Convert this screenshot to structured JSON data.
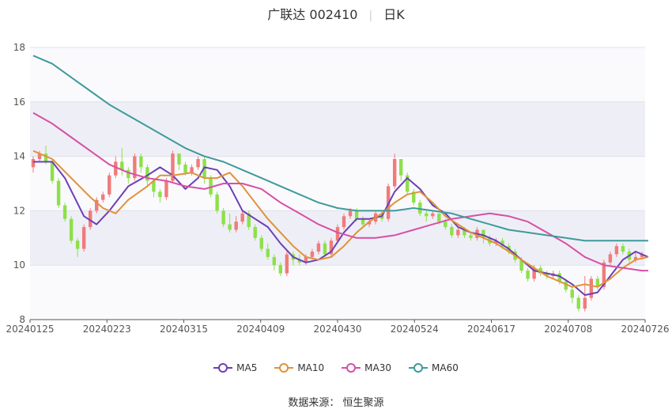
{
  "header": {
    "stock": "广联达 002410",
    "period": "日K"
  },
  "legend": [
    {
      "label": "MA5",
      "color": "#6c3fb5"
    },
    {
      "label": "MA10",
      "color": "#e0923a"
    },
    {
      "label": "MA30",
      "color": "#d84fa6"
    },
    {
      "label": "MA60",
      "color": "#3f9a9a"
    }
  ],
  "source": "数据来源：  恒生聚源",
  "chart_data": {
    "type": "candlestick",
    "ylim": [
      8,
      18
    ],
    "yticks": [
      8,
      10,
      12,
      14,
      16,
      18
    ],
    "xticks": [
      "20240125",
      "20240223",
      "20240315",
      "20240409",
      "20240430",
      "20240524",
      "20240617",
      "20240708",
      "20240726"
    ],
    "candles": [
      [
        13.6,
        13.9,
        14.0,
        13.4
      ],
      [
        13.9,
        14.1,
        14.2,
        13.8
      ],
      [
        14.1,
        13.8,
        14.4,
        13.7
      ],
      [
        13.8,
        13.1,
        13.9,
        13.0
      ],
      [
        13.1,
        12.2,
        13.2,
        12.1
      ],
      [
        12.2,
        11.7,
        12.3,
        11.6
      ],
      [
        11.7,
        10.9,
        11.8,
        10.8
      ],
      [
        10.9,
        10.6,
        11.0,
        10.3
      ],
      [
        10.6,
        11.4,
        11.5,
        10.5
      ],
      [
        11.4,
        12.0,
        12.1,
        11.3
      ],
      [
        12.0,
        12.4,
        12.5,
        11.9
      ],
      [
        12.4,
        12.6,
        12.7,
        12.3
      ],
      [
        12.6,
        13.3,
        13.4,
        12.5
      ],
      [
        13.3,
        13.8,
        14.0,
        13.2
      ],
      [
        13.8,
        13.5,
        14.3,
        13.3
      ],
      [
        13.5,
        13.2,
        13.6,
        13.0
      ],
      [
        13.2,
        14.0,
        14.1,
        13.1
      ],
      [
        14.0,
        13.6,
        14.1,
        13.4
      ],
      [
        13.6,
        13.1,
        13.7,
        12.9
      ],
      [
        13.1,
        12.7,
        13.2,
        12.5
      ],
      [
        12.7,
        12.5,
        12.8,
        12.3
      ],
      [
        12.5,
        13.1,
        13.2,
        12.4
      ],
      [
        13.1,
        14.1,
        14.2,
        13.0
      ],
      [
        14.1,
        13.7,
        14.0,
        13.5
      ],
      [
        13.7,
        13.4,
        13.8,
        13.3
      ],
      [
        13.4,
        13.6,
        13.7,
        13.3
      ],
      [
        13.6,
        13.9,
        14.0,
        13.5
      ],
      [
        13.9,
        13.2,
        14.0,
        13.0
      ],
      [
        13.2,
        12.6,
        13.3,
        12.5
      ],
      [
        12.6,
        12.0,
        12.7,
        11.9
      ],
      [
        12.0,
        11.5,
        12.1,
        11.4
      ],
      [
        11.5,
        11.3,
        11.9,
        11.2
      ],
      [
        11.3,
        11.6,
        11.8,
        11.2
      ],
      [
        11.6,
        11.9,
        12.0,
        11.5
      ],
      [
        11.9,
        11.4,
        12.0,
        11.3
      ],
      [
        11.4,
        11.0,
        11.5,
        10.9
      ],
      [
        11.0,
        10.6,
        11.1,
        10.5
      ],
      [
        10.6,
        10.3,
        10.8,
        10.2
      ],
      [
        10.3,
        10.0,
        10.4,
        9.8
      ],
      [
        10.0,
        9.7,
        10.1,
        9.6
      ],
      [
        9.7,
        10.4,
        10.5,
        9.6
      ],
      [
        10.4,
        10.2,
        10.5,
        10.0
      ],
      [
        10.2,
        10.1,
        10.4,
        10.0
      ],
      [
        10.1,
        10.3,
        10.4,
        10.0
      ],
      [
        10.3,
        10.5,
        10.6,
        10.2
      ],
      [
        10.5,
        10.8,
        10.9,
        10.4
      ],
      [
        10.8,
        10.4,
        10.9,
        10.3
      ],
      [
        10.4,
        10.9,
        11.0,
        10.3
      ],
      [
        10.9,
        11.4,
        11.5,
        10.8
      ],
      [
        11.4,
        11.8,
        11.9,
        11.3
      ],
      [
        11.8,
        12.0,
        12.1,
        11.7
      ],
      [
        12.0,
        11.7,
        12.1,
        11.6
      ],
      [
        11.7,
        11.5,
        11.8,
        11.4
      ],
      [
        11.5,
        11.6,
        11.7,
        11.4
      ],
      [
        11.6,
        11.9,
        12.0,
        11.5
      ],
      [
        11.9,
        11.7,
        12.0,
        11.6
      ],
      [
        11.7,
        12.9,
        13.0,
        11.6
      ],
      [
        12.9,
        13.9,
        14.1,
        12.8
      ],
      [
        13.9,
        13.3,
        13.9,
        13.1
      ],
      [
        13.3,
        12.7,
        13.4,
        12.6
      ],
      [
        12.7,
        12.3,
        12.8,
        12.2
      ],
      [
        12.3,
        11.9,
        12.4,
        11.8
      ],
      [
        11.9,
        11.8,
        12.0,
        11.6
      ],
      [
        11.8,
        11.9,
        12.0,
        11.7
      ],
      [
        11.9,
        11.6,
        11.9,
        11.5
      ],
      [
        11.6,
        11.4,
        11.7,
        11.3
      ],
      [
        11.4,
        11.1,
        11.5,
        11.0
      ],
      [
        11.1,
        11.3,
        11.4,
        11.0
      ],
      [
        11.3,
        11.1,
        11.4,
        11.0
      ],
      [
        11.1,
        11.0,
        11.2,
        10.9
      ],
      [
        11.0,
        11.3,
        11.4,
        10.9
      ],
      [
        11.3,
        11.0,
        11.3,
        10.8
      ],
      [
        11.0,
        10.8,
        11.1,
        10.7
      ],
      [
        10.8,
        10.9,
        11.0,
        10.7
      ],
      [
        10.9,
        10.7,
        11.0,
        10.6
      ],
      [
        10.7,
        10.5,
        10.8,
        10.4
      ],
      [
        10.5,
        10.2,
        10.6,
        10.1
      ],
      [
        10.2,
        9.8,
        10.3,
        9.7
      ],
      [
        9.8,
        9.5,
        9.9,
        9.4
      ],
      [
        9.5,
        9.9,
        10.0,
        9.4
      ],
      [
        9.9,
        9.7,
        10.0,
        9.6
      ],
      [
        9.7,
        9.6,
        9.8,
        9.5
      ],
      [
        9.6,
        9.7,
        9.8,
        9.5
      ],
      [
        9.7,
        9.4,
        9.8,
        9.3
      ],
      [
        9.4,
        9.1,
        9.5,
        9.0
      ],
      [
        9.1,
        8.8,
        9.2,
        8.6
      ],
      [
        8.8,
        8.4,
        8.9,
        8.3
      ],
      [
        8.4,
        8.8,
        9.6,
        8.3
      ],
      [
        8.8,
        9.5,
        9.6,
        8.7
      ],
      [
        9.5,
        9.2,
        9.6,
        9.1
      ],
      [
        9.2,
        10.1,
        10.2,
        9.1
      ],
      [
        10.1,
        10.4,
        10.5,
        10.0
      ],
      [
        10.4,
        10.7,
        10.8,
        10.3
      ],
      [
        10.7,
        10.5,
        10.8,
        10.4
      ],
      [
        10.5,
        10.2,
        10.6,
        10.1
      ],
      [
        10.2,
        10.3,
        10.5,
        10.1
      ],
      [
        10.3,
        10.4,
        10.5,
        10.2
      ]
    ],
    "series": [
      {
        "name": "MA5",
        "color": "#6c3fb5",
        "values": [
          [
            0,
            13.8
          ],
          [
            3,
            13.8
          ],
          [
            5,
            13.2
          ],
          [
            8,
            11.8
          ],
          [
            10,
            11.5
          ],
          [
            12,
            12.0
          ],
          [
            15,
            12.9
          ],
          [
            18,
            13.3
          ],
          [
            20,
            13.6
          ],
          [
            22,
            13.3
          ],
          [
            24,
            12.8
          ],
          [
            26,
            13.2
          ],
          [
            27,
            13.6
          ],
          [
            29,
            13.5
          ],
          [
            31,
            12.9
          ],
          [
            33,
            12.0
          ],
          [
            35,
            11.7
          ],
          [
            37,
            11.4
          ],
          [
            39,
            10.8
          ],
          [
            41,
            10.3
          ],
          [
            43,
            10.1
          ],
          [
            45,
            10.2
          ],
          [
            47,
            10.5
          ],
          [
            49,
            11.2
          ],
          [
            51,
            11.7
          ],
          [
            53,
            11.7
          ],
          [
            55,
            11.8
          ],
          [
            57,
            12.7
          ],
          [
            59,
            13.2
          ],
          [
            61,
            12.8
          ],
          [
            63,
            12.2
          ],
          [
            65,
            11.9
          ],
          [
            67,
            11.4
          ],
          [
            69,
            11.2
          ],
          [
            71,
            11.1
          ],
          [
            73,
            10.9
          ],
          [
            75,
            10.6
          ],
          [
            77,
            10.2
          ],
          [
            79,
            9.8
          ],
          [
            81,
            9.7
          ],
          [
            83,
            9.6
          ],
          [
            85,
            9.3
          ],
          [
            87,
            8.9
          ],
          [
            89,
            9.0
          ],
          [
            91,
            9.6
          ],
          [
            93,
            10.2
          ],
          [
            95,
            10.5
          ],
          [
            97,
            10.3
          ]
        ]
      },
      {
        "name": "MA10",
        "color": "#e0923a",
        "values": [
          [
            0,
            14.2
          ],
          [
            3,
            13.9
          ],
          [
            6,
            13.2
          ],
          [
            9,
            12.5
          ],
          [
            11,
            12.1
          ],
          [
            13,
            11.9
          ],
          [
            15,
            12.4
          ],
          [
            18,
            12.9
          ],
          [
            20,
            13.3
          ],
          [
            22,
            13.3
          ],
          [
            25,
            13.4
          ],
          [
            27,
            13.2
          ],
          [
            29,
            13.2
          ],
          [
            31,
            13.4
          ],
          [
            33,
            12.9
          ],
          [
            35,
            12.3
          ],
          [
            37,
            11.7
          ],
          [
            39,
            11.2
          ],
          [
            41,
            10.7
          ],
          [
            43,
            10.3
          ],
          [
            45,
            10.2
          ],
          [
            47,
            10.3
          ],
          [
            49,
            10.7
          ],
          [
            51,
            11.2
          ],
          [
            53,
            11.6
          ],
          [
            55,
            11.9
          ],
          [
            57,
            12.3
          ],
          [
            59,
            12.6
          ],
          [
            61,
            12.7
          ],
          [
            63,
            12.3
          ],
          [
            65,
            11.8
          ],
          [
            67,
            11.5
          ],
          [
            69,
            11.2
          ],
          [
            71,
            11.0
          ],
          [
            73,
            10.8
          ],
          [
            75,
            10.5
          ],
          [
            77,
            10.2
          ],
          [
            79,
            9.9
          ],
          [
            81,
            9.6
          ],
          [
            83,
            9.4
          ],
          [
            85,
            9.2
          ],
          [
            87,
            9.3
          ],
          [
            89,
            9.2
          ],
          [
            91,
            9.5
          ],
          [
            93,
            9.9
          ],
          [
            95,
            10.2
          ],
          [
            97,
            10.3
          ]
        ]
      },
      {
        "name": "MA30",
        "color": "#d84fa6",
        "values": [
          [
            0,
            15.6
          ],
          [
            3,
            15.2
          ],
          [
            6,
            14.7
          ],
          [
            9,
            14.2
          ],
          [
            12,
            13.7
          ],
          [
            15,
            13.4
          ],
          [
            18,
            13.2
          ],
          [
            21,
            13.1
          ],
          [
            24,
            12.9
          ],
          [
            27,
            12.8
          ],
          [
            30,
            13.0
          ],
          [
            33,
            13.0
          ],
          [
            36,
            12.8
          ],
          [
            39,
            12.3
          ],
          [
            42,
            11.9
          ],
          [
            45,
            11.5
          ],
          [
            48,
            11.2
          ],
          [
            51,
            11.0
          ],
          [
            54,
            11.0
          ],
          [
            57,
            11.1
          ],
          [
            60,
            11.3
          ],
          [
            63,
            11.5
          ],
          [
            66,
            11.7
          ],
          [
            69,
            11.8
          ],
          [
            72,
            11.9
          ],
          [
            75,
            11.8
          ],
          [
            78,
            11.6
          ],
          [
            81,
            11.2
          ],
          [
            84,
            10.8
          ],
          [
            87,
            10.3
          ],
          [
            90,
            10.0
          ],
          [
            93,
            9.9
          ],
          [
            96,
            9.8
          ],
          [
            97,
            9.8
          ]
        ]
      },
      {
        "name": "MA60",
        "color": "#3f9a9a",
        "values": [
          [
            0,
            17.7
          ],
          [
            3,
            17.4
          ],
          [
            6,
            16.9
          ],
          [
            9,
            16.4
          ],
          [
            12,
            15.9
          ],
          [
            15,
            15.5
          ],
          [
            18,
            15.1
          ],
          [
            21,
            14.7
          ],
          [
            24,
            14.3
          ],
          [
            27,
            14.0
          ],
          [
            30,
            13.8
          ],
          [
            33,
            13.5
          ],
          [
            36,
            13.2
          ],
          [
            39,
            12.9
          ],
          [
            42,
            12.6
          ],
          [
            45,
            12.3
          ],
          [
            48,
            12.1
          ],
          [
            51,
            12.0
          ],
          [
            54,
            12.0
          ],
          [
            57,
            12.0
          ],
          [
            60,
            12.1
          ],
          [
            63,
            12.0
          ],
          [
            66,
            11.9
          ],
          [
            69,
            11.7
          ],
          [
            72,
            11.5
          ],
          [
            75,
            11.3
          ],
          [
            78,
            11.2
          ],
          [
            81,
            11.1
          ],
          [
            84,
            11.0
          ],
          [
            87,
            10.9
          ],
          [
            90,
            10.9
          ],
          [
            93,
            10.9
          ],
          [
            96,
            10.9
          ],
          [
            97,
            10.9
          ]
        ]
      }
    ]
  }
}
